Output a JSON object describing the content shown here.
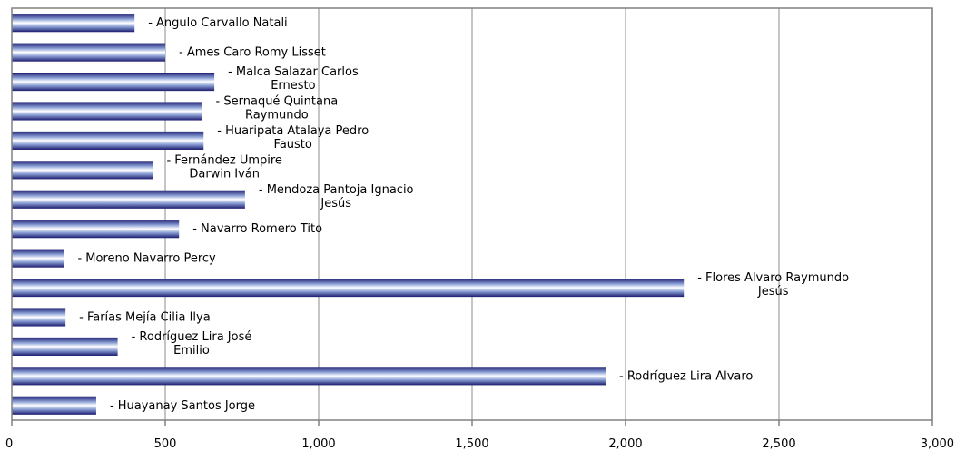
{
  "chart_data": {
    "type": "bar",
    "orientation": "horizontal",
    "categories": [
      "- Angulo Carvallo Natali",
      "- Ames Caro Romy Lisset",
      "- Malca Salazar Carlos Ernesto",
      "- Sernaqué Quintana Raymundo",
      "- Huaripata Atalaya Pedro Fausto",
      "- Fernández Umpire Darwin Iván",
      "- Mendoza Pantoja Ignacio Jesús",
      "- Navarro Romero Tito",
      "- Moreno Navarro Percy",
      "- Flores  Alvaro Raymundo Jesús",
      "- Farías Mejía Cilia Ilya",
      "- Rodríguez Lira José Emilio",
      "- Rodríguez Lira Alvaro",
      "- Huayanay Santos Jorge"
    ],
    "label_lines": [
      [
        "- Angulo Carvallo Natali"
      ],
      [
        "- Ames Caro Romy Lisset"
      ],
      [
        "- Malca Salazar Carlos",
        "Ernesto"
      ],
      [
        "- Sernaqué Quintana",
        "Raymundo"
      ],
      [
        "- Huaripata Atalaya Pedro",
        "Fausto"
      ],
      [
        "- Fernández Umpire",
        "Darwin Iván"
      ],
      [
        "- Mendoza Pantoja Ignacio",
        "Jesús"
      ],
      [
        "- Navarro Romero Tito"
      ],
      [
        "- Moreno Navarro Percy"
      ],
      [
        "- Flores  Alvaro Raymundo",
        "Jesús"
      ],
      [
        "- Farías Mejía Cilia Ilya"
      ],
      [
        "- Rodríguez Lira José",
        "Emilio"
      ],
      [
        "- Rodríguez Lira Alvaro"
      ],
      [
        "- Huayanay Santos Jorge"
      ]
    ],
    "values": [
      400,
      500,
      660,
      620,
      625,
      460,
      760,
      545,
      170,
      2190,
      175,
      345,
      1935,
      275
    ],
    "xlim": [
      0,
      3000
    ],
    "xticks": [
      0,
      500,
      1000,
      1500,
      2000,
      2500,
      3000
    ],
    "xtick_labels": [
      "0",
      "500",
      "1,000",
      "1,500",
      "2,000",
      "2,500",
      "3,000"
    ],
    "title": "",
    "xlabel": "",
    "ylabel": "",
    "grid": "vertical",
    "legend": "none",
    "colors": {
      "bar_edge": "#1a1a6e",
      "bar_mid": "#ffffff",
      "bar_light": "#8fa4d8",
      "grid": "#a6a6a6",
      "axis": "#808080"
    }
  }
}
